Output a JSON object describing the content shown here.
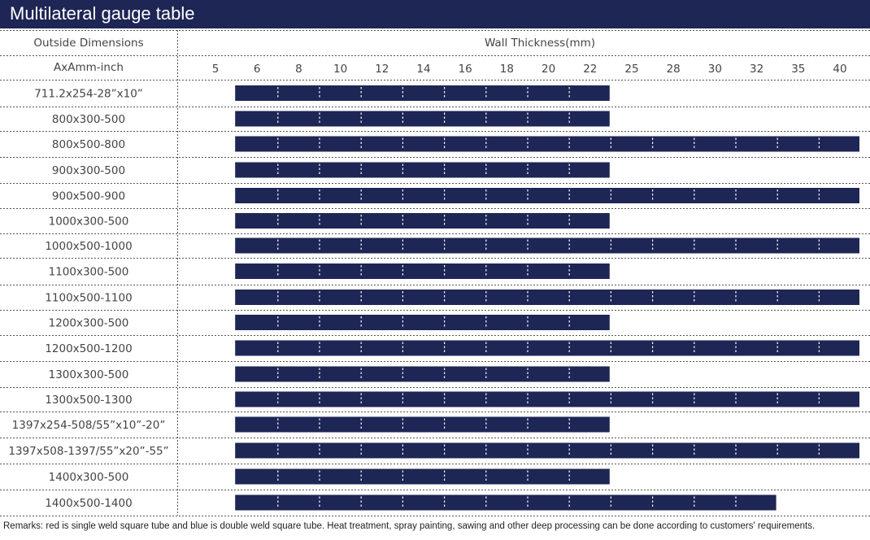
{
  "title": "Multilateral gauge table",
  "remarks": "Remarks: red is single weld square tube and blue is double weld square tube. Heat treatment, spray painting, sawing and other deep processing can be done according to customers' requirements.",
  "colors": {
    "header": "#1d2654",
    "bar": "#1d2654",
    "separator": "#ffffff",
    "grid": "#555555"
  },
  "chart_data": {
    "type": "table",
    "row_header_1": "Outside Dimensions",
    "row_header_2": "AxAmm-inch",
    "column_header": "Wall  Thickness(mm)",
    "thickness_ticks": [
      "5",
      "6",
      "8",
      "10",
      "12",
      "14",
      "16",
      "18",
      "20",
      "22",
      "25",
      "28",
      "30",
      "32",
      "35",
      "40"
    ],
    "bar_start": "6",
    "rows": [
      {
        "dimension": "711.2x254-28”x10”",
        "max_thickness": "22"
      },
      {
        "dimension": "800x300-500",
        "max_thickness": "22"
      },
      {
        "dimension": "800x500-800",
        "max_thickness": "40"
      },
      {
        "dimension": "900x300-500",
        "max_thickness": "22"
      },
      {
        "dimension": "900x500-900",
        "max_thickness": "40"
      },
      {
        "dimension": "1000x300-500",
        "max_thickness": "22"
      },
      {
        "dimension": "1000x500-1000",
        "max_thickness": "40"
      },
      {
        "dimension": "1100x300-500",
        "max_thickness": "22"
      },
      {
        "dimension": "1100x500-1100",
        "max_thickness": "40"
      },
      {
        "dimension": "1200x300-500",
        "max_thickness": "22"
      },
      {
        "dimension": "1200x500-1200",
        "max_thickness": "40"
      },
      {
        "dimension": "1300x300-500",
        "max_thickness": "22"
      },
      {
        "dimension": "1300x500-1300",
        "max_thickness": "40"
      },
      {
        "dimension": "1397x254-508/55”x10”-20”",
        "max_thickness": "22"
      },
      {
        "dimension": "1397x508-1397/55”x20”-55”",
        "max_thickness": "40"
      },
      {
        "dimension": "1400x300-500",
        "max_thickness": "22"
      },
      {
        "dimension": "1400x500-1400",
        "max_thickness": "32"
      }
    ]
  }
}
